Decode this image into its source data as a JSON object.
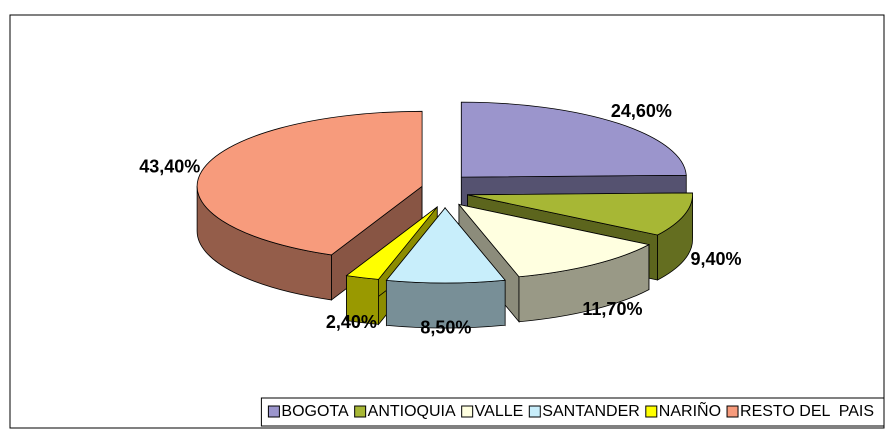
{
  "chart_data": {
    "type": "pie3d",
    "categories": [
      "BOGOTA",
      "ANTIOQUIA",
      "VALLE",
      "SANTANDER",
      "NARIÑO",
      "RESTO DEL  PAIS"
    ],
    "values": [
      24.6,
      9.4,
      11.7,
      8.5,
      2.4,
      43.4
    ],
    "value_labels": [
      "24,60%",
      "9,40%",
      "11,70%",
      "8,50%",
      "2,40%",
      "43,40%"
    ],
    "colors": [
      "#9b95cc",
      "#a7b735",
      "#ffffe0",
      "#c8eefb",
      "#ffff00",
      "#f79b7c"
    ],
    "legend": "bottom"
  }
}
